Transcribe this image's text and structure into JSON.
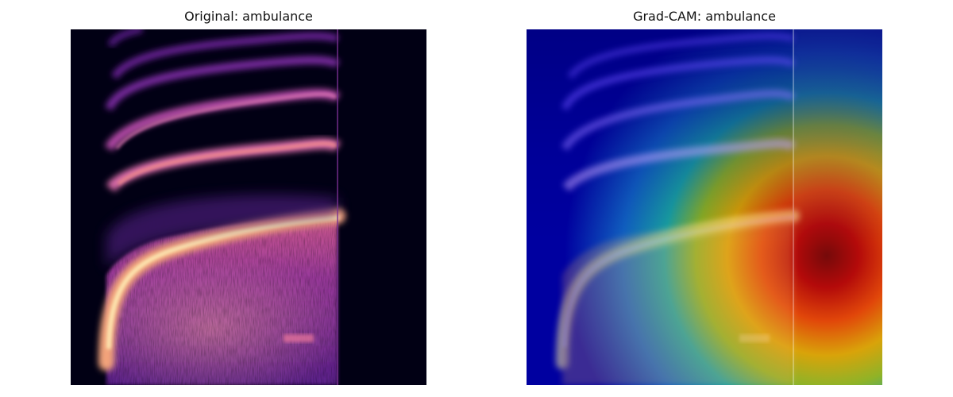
{
  "figure": {
    "panels": [
      {
        "title": "Original: ambulance",
        "colormap": "magma"
      },
      {
        "title": "Grad-CAM: ambulance",
        "colormap": "jet"
      }
    ]
  }
}
